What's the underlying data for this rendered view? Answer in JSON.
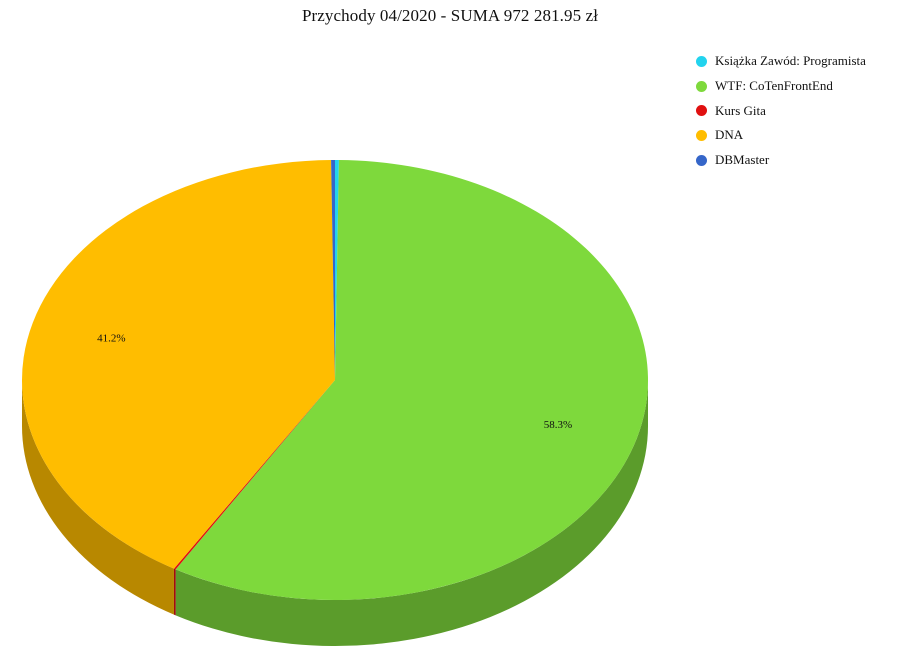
{
  "chart_data": {
    "type": "pie",
    "title": "Przychody 04/2020 - SUMA 972 281.95 zł",
    "legend_position": "top-right",
    "three_d": true,
    "slices": [
      {
        "name": "Książka Zawód: Programista",
        "value": 0.2,
        "color": "#22d3ee"
      },
      {
        "name": "WTF: CoTenFrontEnd",
        "value": 58.3,
        "color": "#7ed93c",
        "label": "58.3%"
      },
      {
        "name": "Kurs Gita",
        "value": 0.1,
        "color": "#e01010"
      },
      {
        "name": "DNA",
        "value": 41.2,
        "color": "#ffbd00",
        "label": "41.2%"
      },
      {
        "name": "DBMaster",
        "value": 0.2,
        "color": "#3566c9"
      }
    ]
  }
}
